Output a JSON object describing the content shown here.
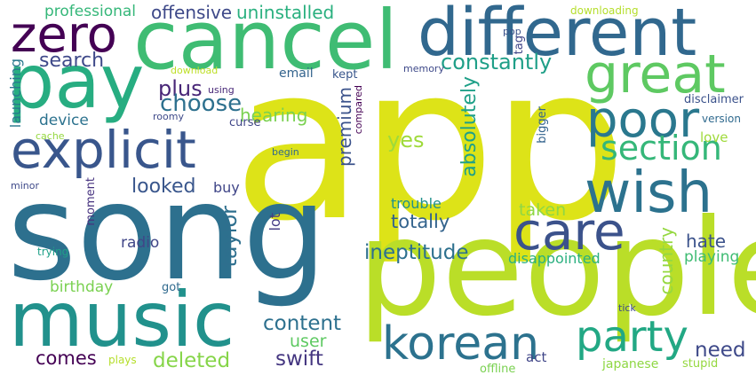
{
  "cloud": {
    "words": {
      "app": "app",
      "song": "song",
      "people": "people",
      "music": "music",
      "cancel": "cancel",
      "different": "different",
      "pay": "pay",
      "explicit": "explicit",
      "zero": "zero",
      "great": "great",
      "poor": "poor",
      "section": "section",
      "wish": "wish",
      "care": "care",
      "korean": "korean",
      "party": "party",
      "constantly": "constantly",
      "search": "search",
      "offensive": "offensive",
      "uninstalled": "uninstalled",
      "professional": "professional",
      "plus": "plus",
      "choose": "choose",
      "hearing": "hearing",
      "email": "email",
      "kept": "kept",
      "using": "using",
      "roomy": "roomy",
      "curse": "curse",
      "download": "download",
      "cache": "cache",
      "device": "device",
      "begin": "begin",
      "minor": "minor",
      "looked": "looked",
      "buy": "buy",
      "radio": "radio",
      "trying": "trying",
      "birthday": "birthday",
      "got": "got",
      "content": "content",
      "user": "user",
      "comes": "comes",
      "plays": "plays",
      "deleted": "deleted",
      "swift": "swift",
      "yes": "yes",
      "totally": "totally",
      "trouble": "trouble",
      "taken": "taken",
      "ineptitude": "ineptitude",
      "disappointed": "disappointed",
      "hate": "hate",
      "playing": "playing",
      "need": "need",
      "act": "act",
      "japanese": "japanese",
      "stupid": "stupid",
      "offline": "offline",
      "tick": "tick",
      "love": "love",
      "version": "version",
      "disclaimer": "disclaimer",
      "memory": "memory",
      "pop": "pop",
      "downloading": "downloading",
      "launching": "launching",
      "premium": "premium",
      "absolutely": "absolutely",
      "taylor": "taylor",
      "lot": "lot",
      "moment": "moment",
      "country": "country",
      "bigger": "bigger",
      "compared": "compared",
      "tag": "tag"
    }
  }
}
